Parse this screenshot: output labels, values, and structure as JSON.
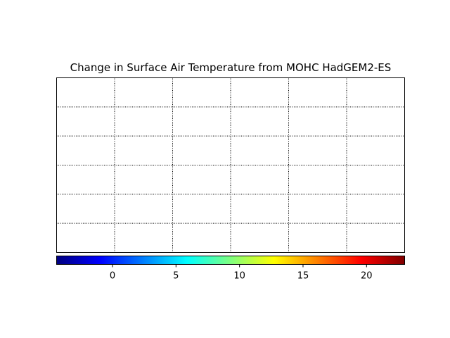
{
  "chart_data": {
    "type": "heatmap",
    "title": "Change in Surface Air Temperature from MOHC HadGEM2-ES",
    "xlabel": "",
    "ylabel": "",
    "grid": true,
    "grid_style": "dotted",
    "grid_columns": 6,
    "grid_rows": 6,
    "colorbar": {
      "colormap": "jet",
      "range": [
        -4.4,
        23.0
      ],
      "ticks": [
        0,
        5,
        10,
        15,
        20
      ],
      "tick_labels": [
        "0",
        "5",
        "10",
        "15",
        "20"
      ],
      "placement": "bottom"
    },
    "colors": {
      "jet": [
        "#00007f",
        "#0000ff",
        "#007fff",
        "#00ffff",
        "#7fff7f",
        "#ffff00",
        "#ff7f00",
        "#ff0000",
        "#7f0000"
      ],
      "grid": "#000000"
    }
  }
}
